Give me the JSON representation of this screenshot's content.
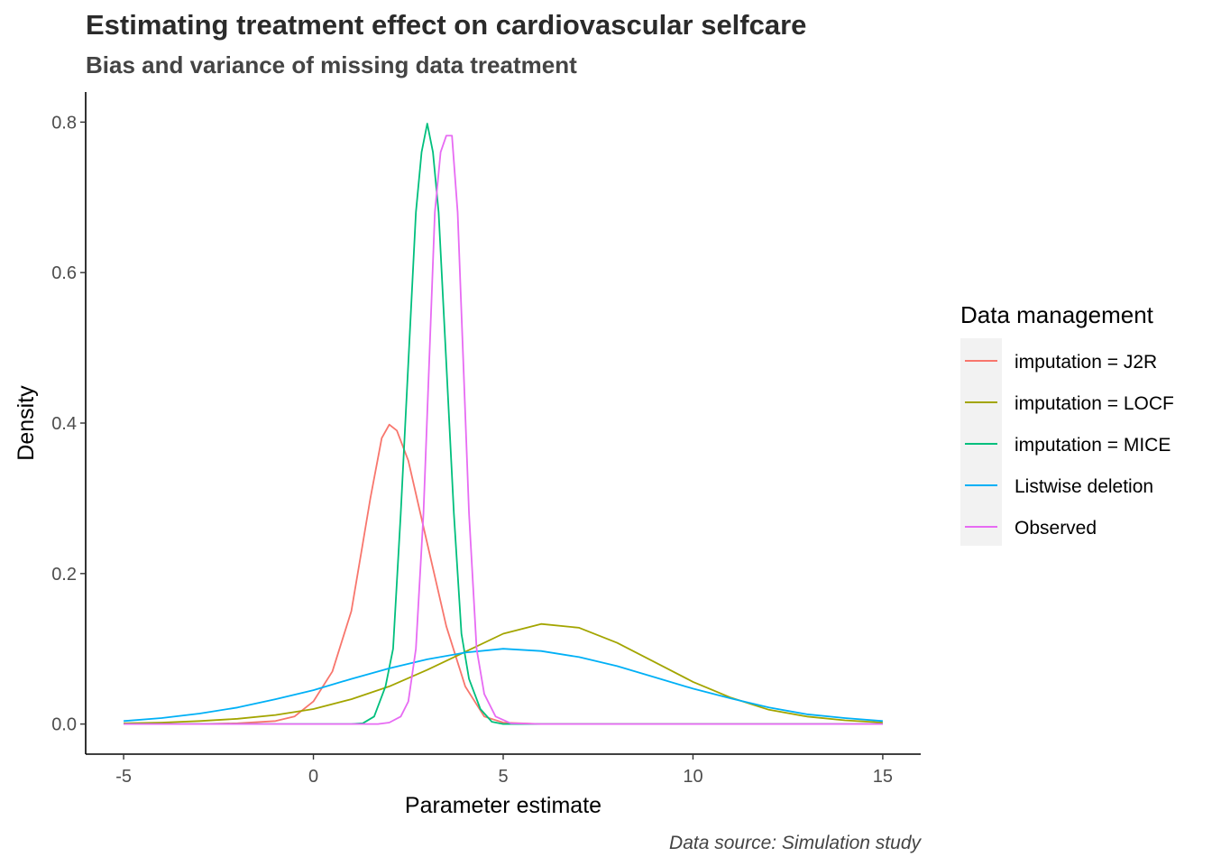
{
  "chart_data": {
    "type": "line",
    "title": "Estimating treatment effect on cardiovascular selfcare",
    "subtitle": "Bias and variance of missing data treatment",
    "caption": "Data source: Simulation study",
    "xlabel": "Parameter estimate",
    "ylabel": "Density",
    "xlim": [
      -6,
      16
    ],
    "ylim": [
      -0.04,
      0.84
    ],
    "x_ticks": [
      -5,
      0,
      5,
      10,
      15
    ],
    "x_tick_labels": [
      "-5",
      "0",
      "5",
      "10",
      "15"
    ],
    "y_ticks": [
      0.0,
      0.2,
      0.4,
      0.6,
      0.8
    ],
    "y_tick_labels": [
      "0.0",
      "0.2",
      "0.4",
      "0.6",
      "0.8"
    ],
    "grid": false,
    "legend": {
      "title": "Data management",
      "position": "right"
    },
    "series": [
      {
        "name": "imputation = J2R",
        "color": "#F8766D",
        "points": [
          [
            -5,
            0
          ],
          [
            -3,
            0
          ],
          [
            -2,
            0.001
          ],
          [
            -1,
            0.004
          ],
          [
            -0.5,
            0.01
          ],
          [
            0,
            0.03
          ],
          [
            0.5,
            0.07
          ],
          [
            1,
            0.15
          ],
          [
            1.3,
            0.24
          ],
          [
            1.5,
            0.3
          ],
          [
            1.8,
            0.38
          ],
          [
            2,
            0.398
          ],
          [
            2.2,
            0.39
          ],
          [
            2.5,
            0.35
          ],
          [
            3,
            0.24
          ],
          [
            3.5,
            0.13
          ],
          [
            4,
            0.05
          ],
          [
            4.5,
            0.01
          ],
          [
            5,
            0.002
          ],
          [
            6,
            0
          ],
          [
            10,
            0
          ],
          [
            15,
            0
          ]
        ]
      },
      {
        "name": "imputation = LOCF",
        "color": "#A3A500",
        "points": [
          [
            -5,
            0.001
          ],
          [
            -4,
            0.002
          ],
          [
            -3,
            0.004
          ],
          [
            -2,
            0.007
          ],
          [
            -1,
            0.012
          ],
          [
            0,
            0.02
          ],
          [
            1,
            0.033
          ],
          [
            2,
            0.05
          ],
          [
            3,
            0.072
          ],
          [
            4,
            0.096
          ],
          [
            5,
            0.12
          ],
          [
            6,
            0.133
          ],
          [
            7,
            0.128
          ],
          [
            8,
            0.108
          ],
          [
            9,
            0.082
          ],
          [
            10,
            0.056
          ],
          [
            11,
            0.035
          ],
          [
            12,
            0.019
          ],
          [
            13,
            0.01
          ],
          [
            14,
            0.005
          ],
          [
            15,
            0.002
          ]
        ]
      },
      {
        "name": "imputation = MICE",
        "color": "#00BF7D",
        "points": [
          [
            -5,
            0
          ],
          [
            1,
            0
          ],
          [
            1.3,
            0.001
          ],
          [
            1.6,
            0.01
          ],
          [
            1.9,
            0.05
          ],
          [
            2.1,
            0.1
          ],
          [
            2.3,
            0.28
          ],
          [
            2.5,
            0.48
          ],
          [
            2.7,
            0.68
          ],
          [
            2.85,
            0.76
          ],
          [
            3,
            0.798
          ],
          [
            3.15,
            0.76
          ],
          [
            3.3,
            0.68
          ],
          [
            3.5,
            0.48
          ],
          [
            3.7,
            0.28
          ],
          [
            3.9,
            0.12
          ],
          [
            4.1,
            0.06
          ],
          [
            4.4,
            0.02
          ],
          [
            4.7,
            0.003
          ],
          [
            5,
            0
          ],
          [
            15,
            0
          ]
        ]
      },
      {
        "name": "Listwise deletion",
        "color": "#00B0F6",
        "points": [
          [
            -5,
            0.004
          ],
          [
            -4,
            0.008
          ],
          [
            -3,
            0.014
          ],
          [
            -2,
            0.022
          ],
          [
            -1,
            0.033
          ],
          [
            0,
            0.045
          ],
          [
            1,
            0.06
          ],
          [
            2,
            0.074
          ],
          [
            3,
            0.086
          ],
          [
            4,
            0.095
          ],
          [
            5,
            0.1
          ],
          [
            6,
            0.097
          ],
          [
            7,
            0.089
          ],
          [
            8,
            0.077
          ],
          [
            9,
            0.062
          ],
          [
            10,
            0.047
          ],
          [
            11,
            0.034
          ],
          [
            12,
            0.022
          ],
          [
            13,
            0.013
          ],
          [
            14,
            0.008
          ],
          [
            15,
            0.004
          ]
        ]
      },
      {
        "name": "Observed",
        "color": "#E76BF3",
        "points": [
          [
            -5,
            0
          ],
          [
            1.7,
            0
          ],
          [
            2,
            0.002
          ],
          [
            2.3,
            0.01
          ],
          [
            2.5,
            0.03
          ],
          [
            2.7,
            0.1
          ],
          [
            2.9,
            0.28
          ],
          [
            3.05,
            0.48
          ],
          [
            3.2,
            0.68
          ],
          [
            3.35,
            0.76
          ],
          [
            3.5,
            0.782
          ],
          [
            3.65,
            0.782
          ],
          [
            3.8,
            0.68
          ],
          [
            3.95,
            0.48
          ],
          [
            4.1,
            0.28
          ],
          [
            4.3,
            0.1
          ],
          [
            4.5,
            0.04
          ],
          [
            4.8,
            0.01
          ],
          [
            5.2,
            0.001
          ],
          [
            6,
            0
          ],
          [
            15,
            0
          ]
        ]
      }
    ]
  }
}
